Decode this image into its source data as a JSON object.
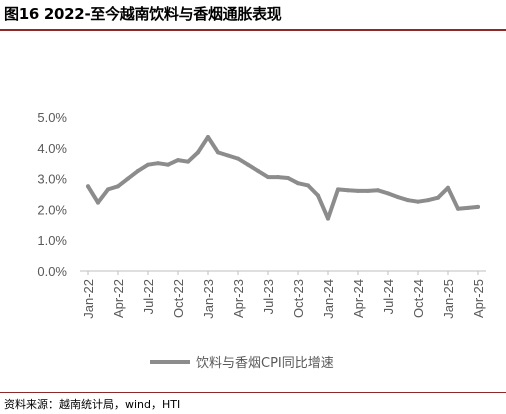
{
  "figure": {
    "title": "图16 2022-至今越南饮料与香烟通胀表现",
    "source": "资料来源：越南统计局，wind，HTI"
  },
  "chart_data": {
    "type": "line",
    "ylim": [
      0,
      5
    ],
    "y_ticks": [
      "0.0%",
      "1.0%",
      "2.0%",
      "3.0%",
      "4.0%",
      "5.0%"
    ],
    "x_tick_labels": [
      "Jan-22",
      "Apr-22",
      "Jul-22",
      "Oct-22",
      "Jan-23",
      "Apr-23",
      "Jul-23",
      "Oct-23",
      "Jan-24",
      "Apr-24",
      "Jul-24",
      "Oct-24",
      "Jan-25",
      "Apr-25"
    ],
    "grid": false,
    "legend_position": "bottom",
    "series": [
      {
        "name": "饮料与香烟CPI同比增速",
        "color": "#8c8c8c",
        "x": [
          "Jan-22",
          "Feb-22",
          "Mar-22",
          "Apr-22",
          "May-22",
          "Jun-22",
          "Jul-22",
          "Aug-22",
          "Sep-22",
          "Oct-22",
          "Nov-22",
          "Dec-22",
          "Jan-23",
          "Feb-23",
          "Mar-23",
          "Apr-23",
          "May-23",
          "Jun-23",
          "Jul-23",
          "Aug-23",
          "Sep-23",
          "Oct-23",
          "Nov-23",
          "Dec-23",
          "Jan-24",
          "Feb-24",
          "Mar-24",
          "Apr-24",
          "May-24",
          "Jun-24",
          "Jul-24",
          "Aug-24",
          "Sep-24",
          "Oct-24",
          "Nov-24",
          "Dec-24",
          "Jan-25",
          "Feb-25",
          "Mar-25",
          "Apr-25"
        ],
        "values": [
          2.75,
          2.22,
          2.65,
          2.75,
          3.0,
          3.25,
          3.45,
          3.5,
          3.45,
          3.6,
          3.55,
          3.85,
          4.35,
          3.85,
          3.75,
          3.65,
          3.45,
          3.25,
          3.05,
          3.05,
          3.02,
          2.85,
          2.78,
          2.45,
          1.7,
          2.65,
          2.62,
          2.6,
          2.6,
          2.62,
          2.52,
          2.4,
          2.3,
          2.25,
          2.3,
          2.38,
          2.7,
          2.02,
          2.05,
          2.08
        ]
      }
    ]
  }
}
